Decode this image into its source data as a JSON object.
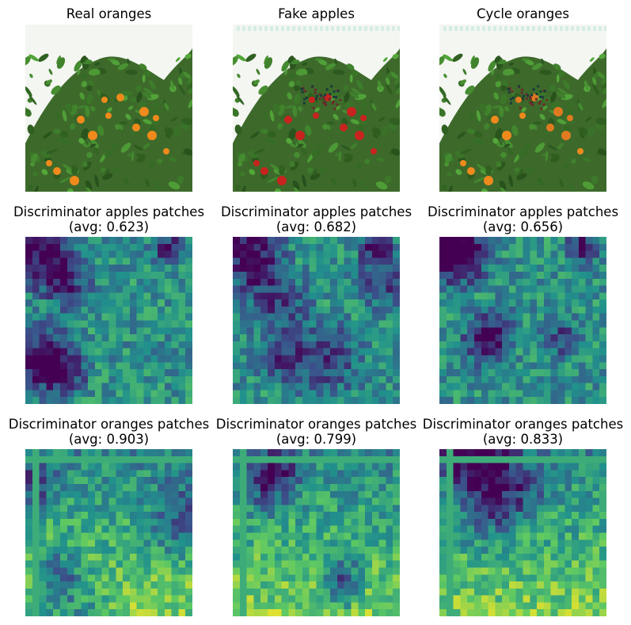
{
  "figure": {
    "panels": [
      {
        "title": "Real oranges",
        "kind": "photo",
        "variant": "real"
      },
      {
        "title": "Fake apples",
        "kind": "photo",
        "variant": "fake"
      },
      {
        "title": "Cycle oranges",
        "kind": "photo",
        "variant": "cycle"
      },
      {
        "title": "Discriminator apples patches",
        "avg": "(avg: 0.623)",
        "kind": "heatmap",
        "seed": 11
      },
      {
        "title": "Discriminator apples patches",
        "avg": "(avg: 0.682)",
        "kind": "heatmap",
        "seed": 23
      },
      {
        "title": "Discriminator apples patches",
        "avg": "(avg: 0.656)",
        "kind": "heatmap",
        "seed": 37
      },
      {
        "title": "Discriminator oranges patches",
        "avg": "(avg: 0.903)",
        "kind": "heatmap",
        "seed": 41
      },
      {
        "title": "Discriminator oranges patches",
        "avg": "(avg: 0.799)",
        "kind": "heatmap",
        "seed": 53
      },
      {
        "title": "Discriminator oranges patches",
        "avg": "(avg: 0.833)",
        "kind": "heatmap",
        "seed": 67
      }
    ]
  },
  "colors": {
    "viridis_dark": "#440154",
    "viridis_blue": "#31688e",
    "viridis_teal": "#21918c",
    "viridis_green": "#35b779",
    "viridis_yellow": "#fde725",
    "foliage": "#3f6b2a",
    "orange_fruit": "#f08a1c",
    "red_fruit": "#c8231e"
  }
}
